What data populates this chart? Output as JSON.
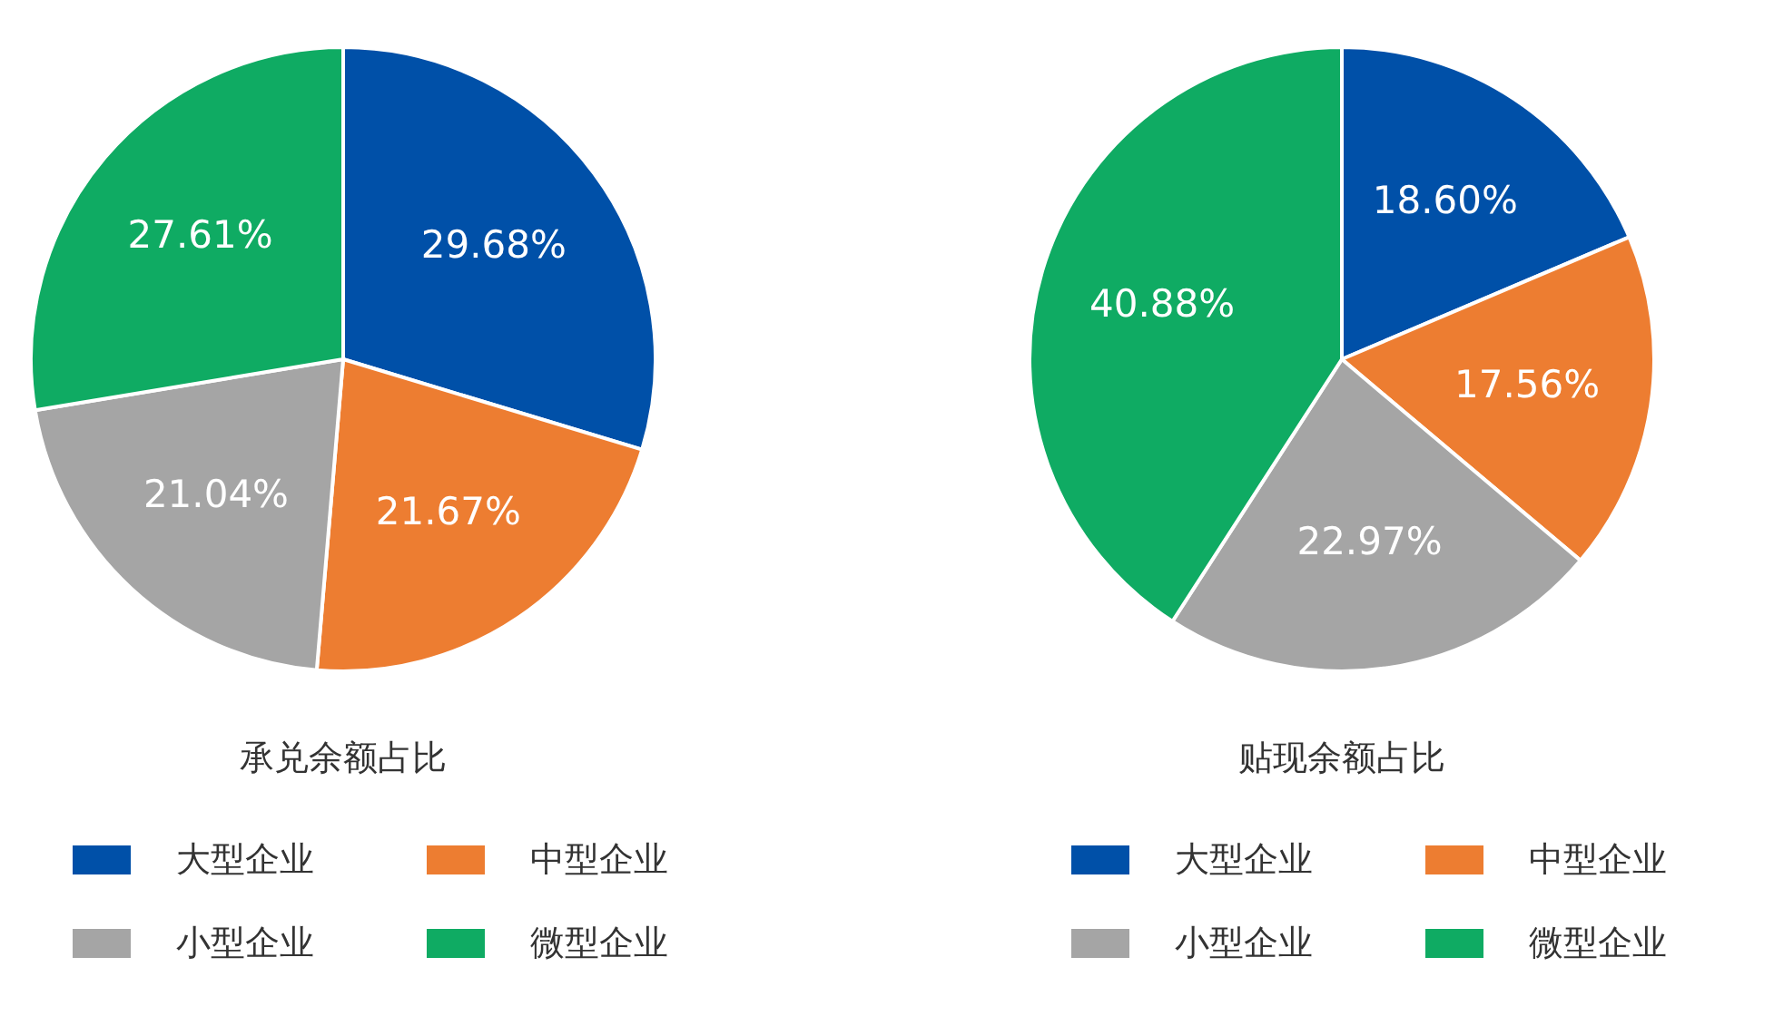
{
  "chart_data": [
    {
      "type": "pie",
      "title": "承兑余额占比",
      "categories": [
        "大型企业",
        "中型企业",
        "小型企业",
        "微型企业"
      ],
      "values": [
        29.68,
        21.67,
        21.04,
        27.61
      ],
      "value_labels": [
        "29.68%",
        "21.67%",
        "21.04%",
        "27.61%"
      ],
      "colors": [
        "#0050a8",
        "#ed7d31",
        "#a5a5a5",
        "#0fab63"
      ],
      "legend": "bottom"
    },
    {
      "type": "pie",
      "title": "贴现余额占比",
      "categories": [
        "大型企业",
        "中型企业",
        "小型企业",
        "微型企业"
      ],
      "values": [
        18.6,
        17.56,
        22.97,
        40.88
      ],
      "value_labels": [
        "18.60%",
        "17.56%",
        "22.97%",
        "40.88%"
      ],
      "colors": [
        "#0050a8",
        "#ed7d31",
        "#a5a5a5",
        "#0fab63"
      ],
      "legend": "bottom"
    }
  ]
}
